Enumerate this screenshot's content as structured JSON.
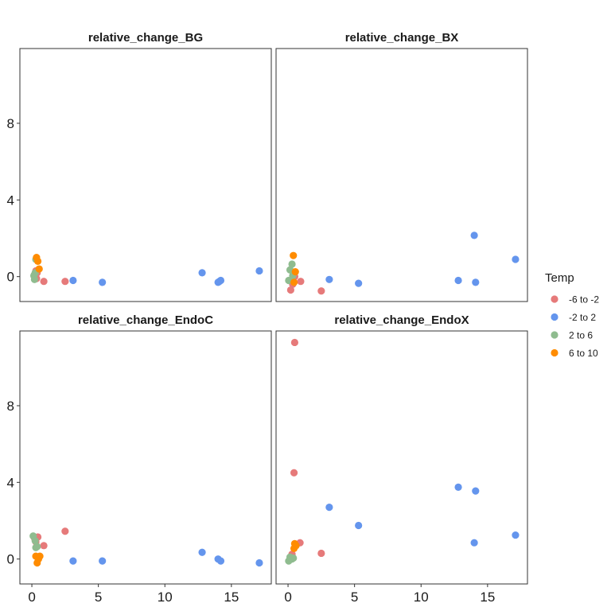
{
  "chart_data": {
    "type": "scatter",
    "xlim": [
      -0.9,
      18
    ],
    "ylim": [
      -1.3,
      11.9
    ],
    "x_ticks": [
      0,
      5,
      10,
      15
    ],
    "y_ticks": [
      0,
      4,
      8
    ],
    "grid": false,
    "legend": {
      "title": "Temp",
      "position": "right",
      "entries": [
        {
          "label": "-6 to -2",
          "color": "#E67A7A"
        },
        {
          "label": "-2 to 2",
          "color": "#6495ED"
        },
        {
          "label": "2 to 6",
          "color": "#8FBC8F"
        },
        {
          "label": "6 to 10",
          "color": "#FF8C00"
        }
      ]
    },
    "panels": [
      {
        "title": "relative_change_BG",
        "points": [
          {
            "x": 0.2,
            "y": 0.1,
            "g": "-6 to -2"
          },
          {
            "x": 0.3,
            "y": 0.3,
            "g": "-6 to -2"
          },
          {
            "x": 0.35,
            "y": -0.1,
            "g": "-6 to -2"
          },
          {
            "x": 0.4,
            "y": 0.2,
            "g": "-6 to -2"
          },
          {
            "x": 0.9,
            "y": -0.25,
            "g": "-6 to -2"
          },
          {
            "x": 2.5,
            "y": -0.25,
            "g": "-6 to -2"
          },
          {
            "x": 3.1,
            "y": -0.2,
            "g": "-2 to 2"
          },
          {
            "x": 5.3,
            "y": -0.3,
            "g": "-2 to 2"
          },
          {
            "x": 12.8,
            "y": 0.2,
            "g": "-2 to 2"
          },
          {
            "x": 14.0,
            "y": -0.3,
            "g": "-2 to 2"
          },
          {
            "x": 14.1,
            "y": -0.25,
            "g": "-2 to 2"
          },
          {
            "x": 14.2,
            "y": -0.2,
            "g": "-2 to 2"
          },
          {
            "x": 17.1,
            "y": 0.3,
            "g": "-2 to 2"
          },
          {
            "x": 0.15,
            "y": 0.05,
            "g": "2 to 6"
          },
          {
            "x": 0.2,
            "y": -0.15,
            "g": "2 to 6"
          },
          {
            "x": 0.25,
            "y": 0.2,
            "g": "2 to 6"
          },
          {
            "x": 0.3,
            "y": 0.9,
            "g": "2 to 6"
          },
          {
            "x": 0.35,
            "y": 1.0,
            "g": "6 to 10"
          },
          {
            "x": 0.45,
            "y": 0.8,
            "g": "6 to 10"
          },
          {
            "x": 0.55,
            "y": 0.4,
            "g": "6 to 10"
          }
        ]
      },
      {
        "title": "relative_change_BX",
        "points": [
          {
            "x": 0.2,
            "y": -0.7,
            "g": "-6 to -2"
          },
          {
            "x": 0.35,
            "y": -0.4,
            "g": "-6 to -2"
          },
          {
            "x": 0.5,
            "y": 0.0,
            "g": "-6 to -2"
          },
          {
            "x": 0.95,
            "y": -0.25,
            "g": "-6 to -2"
          },
          {
            "x": 2.5,
            "y": -0.75,
            "g": "-6 to -2"
          },
          {
            "x": 3.1,
            "y": -0.15,
            "g": "-2 to 2"
          },
          {
            "x": 5.3,
            "y": -0.35,
            "g": "-2 to 2"
          },
          {
            "x": 12.8,
            "y": -0.2,
            "g": "-2 to 2"
          },
          {
            "x": 14.0,
            "y": 2.15,
            "g": "-2 to 2"
          },
          {
            "x": 14.1,
            "y": -0.3,
            "g": "-2 to 2"
          },
          {
            "x": 17.1,
            "y": 0.9,
            "g": "-2 to 2"
          },
          {
            "x": 0.05,
            "y": -0.2,
            "g": "2 to 6"
          },
          {
            "x": 0.15,
            "y": 0.35,
            "g": "2 to 6"
          },
          {
            "x": 0.3,
            "y": 0.65,
            "g": "2 to 6"
          },
          {
            "x": 0.35,
            "y": 0.05,
            "g": "2 to 6"
          },
          {
            "x": 0.4,
            "y": 1.1,
            "g": "6 to 10"
          },
          {
            "x": 0.45,
            "y": -0.3,
            "g": "6 to 10"
          },
          {
            "x": 0.55,
            "y": 0.25,
            "g": "6 to 10"
          }
        ]
      },
      {
        "title": "relative_change_EndoC",
        "points": [
          {
            "x": 0.2,
            "y": 1.1,
            "g": "-6 to -2"
          },
          {
            "x": 0.3,
            "y": 0.9,
            "g": "-6 to -2"
          },
          {
            "x": 0.45,
            "y": 1.15,
            "g": "-6 to -2"
          },
          {
            "x": 0.9,
            "y": 0.7,
            "g": "-6 to -2"
          },
          {
            "x": 2.5,
            "y": 1.45,
            "g": "-6 to -2"
          },
          {
            "x": 3.1,
            "y": -0.1,
            "g": "-2 to 2"
          },
          {
            "x": 5.3,
            "y": -0.1,
            "g": "-2 to 2"
          },
          {
            "x": 12.8,
            "y": 0.35,
            "g": "-2 to 2"
          },
          {
            "x": 14.0,
            "y": 0.0,
            "g": "-2 to 2"
          },
          {
            "x": 14.2,
            "y": -0.1,
            "g": "-2 to 2"
          },
          {
            "x": 17.1,
            "y": -0.2,
            "g": "-2 to 2"
          },
          {
            "x": 0.1,
            "y": 1.2,
            "g": "2 to 6"
          },
          {
            "x": 0.25,
            "y": 0.95,
            "g": "2 to 6"
          },
          {
            "x": 0.3,
            "y": 0.6,
            "g": "2 to 6"
          },
          {
            "x": 0.4,
            "y": 0.65,
            "g": "2 to 6"
          },
          {
            "x": 0.3,
            "y": 0.15,
            "g": "6 to 10"
          },
          {
            "x": 0.4,
            "y": -0.2,
            "g": "6 to 10"
          },
          {
            "x": 0.5,
            "y": 0.0,
            "g": "6 to 10"
          },
          {
            "x": 0.6,
            "y": 0.15,
            "g": "6 to 10"
          }
        ]
      },
      {
        "title": "relative_change_EndoX",
        "points": [
          {
            "x": 0.5,
            "y": 11.3,
            "g": "-6 to -2"
          },
          {
            "x": 0.45,
            "y": 4.5,
            "g": "-6 to -2"
          },
          {
            "x": 0.9,
            "y": 0.85,
            "g": "-6 to -2"
          },
          {
            "x": 2.5,
            "y": 0.3,
            "g": "-6 to -2"
          },
          {
            "x": 0.3,
            "y": 0.25,
            "g": "-6 to -2"
          },
          {
            "x": 3.1,
            "y": 2.7,
            "g": "-2 to 2"
          },
          {
            "x": 5.3,
            "y": 1.75,
            "g": "-2 to 2"
          },
          {
            "x": 12.8,
            "y": 3.75,
            "g": "-2 to 2"
          },
          {
            "x": 14.0,
            "y": 0.85,
            "g": "-2 to 2"
          },
          {
            "x": 14.1,
            "y": 3.55,
            "g": "-2 to 2"
          },
          {
            "x": 17.1,
            "y": 1.25,
            "g": "-2 to 2"
          },
          {
            "x": 0.05,
            "y": -0.1,
            "g": "2 to 6"
          },
          {
            "x": 0.15,
            "y": 0.1,
            "g": "2 to 6"
          },
          {
            "x": 0.3,
            "y": 0.0,
            "g": "2 to 6"
          },
          {
            "x": 0.4,
            "y": 0.05,
            "g": "2 to 6"
          },
          {
            "x": 0.45,
            "y": 0.55,
            "g": "6 to 10"
          },
          {
            "x": 0.5,
            "y": 0.8,
            "g": "6 to 10"
          },
          {
            "x": 0.6,
            "y": 0.7,
            "g": "6 to 10"
          }
        ]
      }
    ]
  }
}
